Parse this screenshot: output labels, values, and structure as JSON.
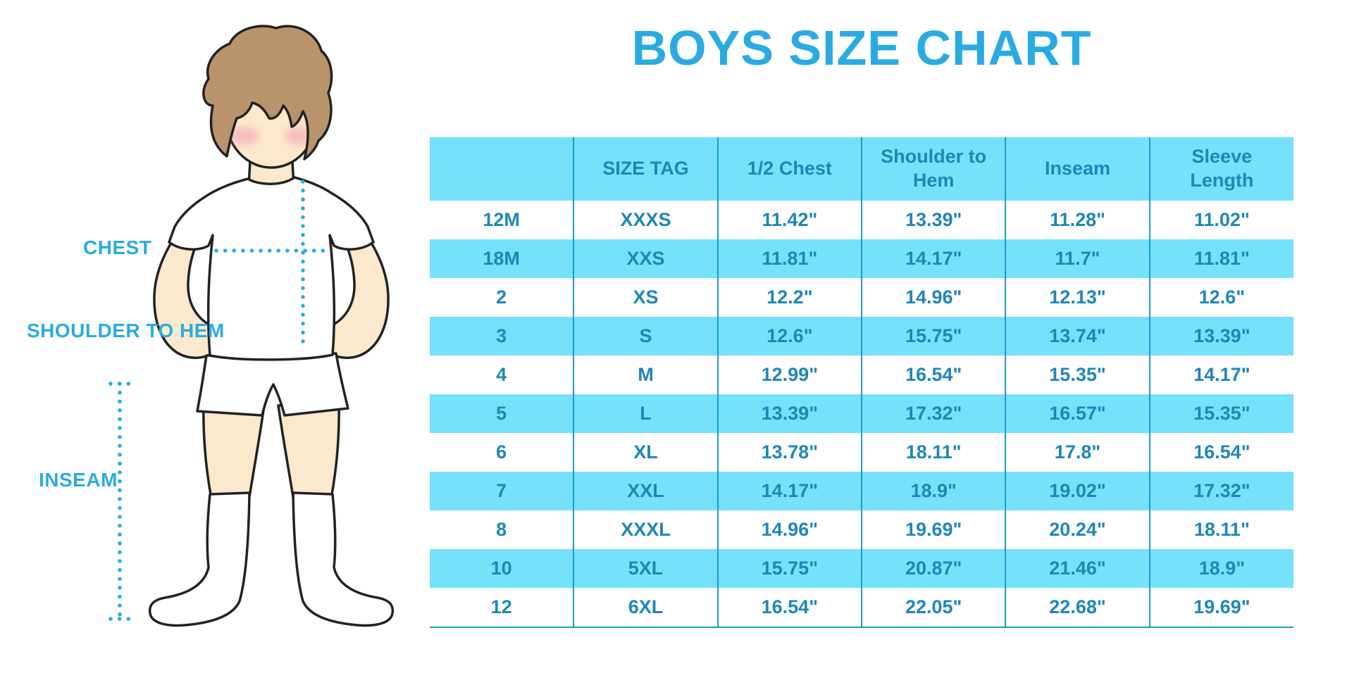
{
  "title": "BOYS SIZE CHART",
  "labels": {
    "chest": "CHEST",
    "shoulder_to_hem": "SHOULDER TO HEM",
    "inseam": "INSEAM"
  },
  "colors": {
    "accent_blue": "#29ABE2",
    "table_fill": "#76E1FB",
    "table_text": "#1E87B7",
    "table_line": "#1A9BD0",
    "hair": "#B9946B",
    "skin": "#FCE8CC",
    "cheek": "#F29DB4"
  },
  "chart_data": {
    "type": "table",
    "title": "BOYS SIZE CHART",
    "columns": [
      "",
      "SIZE TAG",
      "1/2 Chest",
      "Shoulder to Hem",
      "Inseam",
      "Sleeve Length"
    ],
    "rows": [
      [
        "12M",
        "XXXS",
        "11.42\"",
        "13.39\"",
        "11.28\"",
        "11.02\""
      ],
      [
        "18M",
        "XXS",
        "11.81\"",
        "14.17\"",
        "11.7\"",
        "11.81\""
      ],
      [
        "2",
        "XS",
        "12.2\"",
        "14.96\"",
        "12.13\"",
        "12.6\""
      ],
      [
        "3",
        "S",
        "12.6\"",
        "15.75\"",
        "13.74\"",
        "13.39\""
      ],
      [
        "4",
        "M",
        "12.99\"",
        "16.54\"",
        "15.35\"",
        "14.17\""
      ],
      [
        "5",
        "L",
        "13.39\"",
        "17.32\"",
        "16.57\"",
        "15.35\""
      ],
      [
        "6",
        "XL",
        "13.78\"",
        "18.11\"",
        "17.8\"",
        "16.54\""
      ],
      [
        "7",
        "XXL",
        "14.17\"",
        "18.9\"",
        "19.02\"",
        "17.32\""
      ],
      [
        "8",
        "XXXL",
        "14.96\"",
        "19.69\"",
        "20.24\"",
        "18.11\""
      ],
      [
        "10",
        "5XL",
        "15.75\"",
        "20.87\"",
        "21.46\"",
        "18.9\""
      ],
      [
        "12",
        "6XL",
        "16.54\"",
        "22.05\"",
        "22.68\"",
        "19.69\""
      ]
    ],
    "row_stripe_pattern": "white/blue alternating, starting white",
    "legend_position": "none",
    "grid": "vertical column dividers only"
  }
}
